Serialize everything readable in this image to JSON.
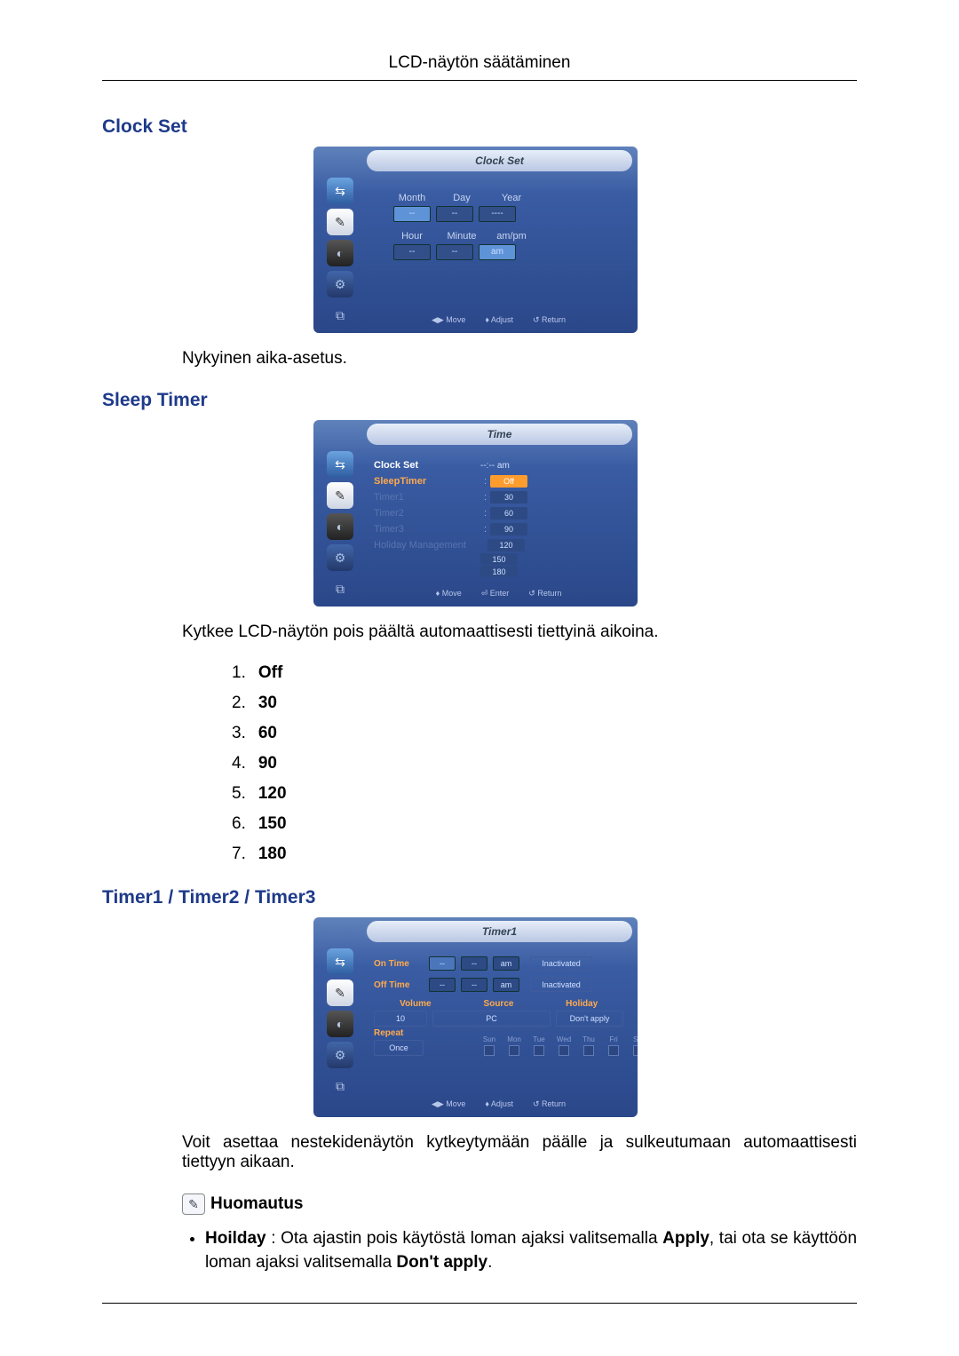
{
  "page": {
    "header": "LCD-näytön säätäminen"
  },
  "clockSet": {
    "title": "Clock Set",
    "osdTitle": "Clock Set",
    "row1_labels": [
      "Month",
      "Day",
      "Year"
    ],
    "row1_vals": [
      "--",
      "--",
      "----"
    ],
    "row2_labels": [
      "Hour",
      "Minute",
      "am/pm"
    ],
    "row2_vals": [
      "--",
      "--",
      "am"
    ],
    "footer": [
      "◀▶ Move",
      "♦ Adjust",
      "↺ Return"
    ],
    "desc": "Nykyinen aika-asetus."
  },
  "sleepTimer": {
    "title": "Sleep Timer",
    "osdTitle": "Time",
    "items": [
      {
        "label": "Clock Set",
        "value": "--:-- am",
        "cls": "active"
      },
      {
        "label": "SleepTimer",
        "value": "Off",
        "cls": "hl"
      },
      {
        "label": "Timer1",
        "value": "30",
        "cls": ""
      },
      {
        "label": "Timer2",
        "value": "60",
        "cls": ""
      },
      {
        "label": "Timer3",
        "value": "90",
        "cls": ""
      },
      {
        "label": "Holiday Management",
        "value": "120",
        "cls": ""
      }
    ],
    "extra": [
      "150",
      "180"
    ],
    "footer": [
      "♦ Move",
      "⏎ Enter",
      "↺ Return"
    ],
    "desc": "Kytkee LCD-näytön pois päältä automaattisesti tiettyinä aikoina.",
    "options": [
      "Off",
      "30",
      "60",
      "90",
      "120",
      "150",
      "180"
    ]
  },
  "timer123": {
    "title": "Timer1 / Timer2 / Timer3",
    "osdTitle": "Timer1",
    "onTime": {
      "label": "On Time",
      "h": "--",
      "m": "--",
      "ap": "am",
      "status": "Inactivated"
    },
    "offTime": {
      "label": "Off Time",
      "h": "--",
      "m": "--",
      "ap": "am",
      "status": "Inactivated"
    },
    "headers3": [
      "Volume",
      "Source",
      "Holiday"
    ],
    "vals3": [
      "10",
      "PC",
      "Don't apply"
    ],
    "repeat": {
      "label": "Repeat",
      "value": "Once"
    },
    "days": [
      "Sun",
      "Mon",
      "Tue",
      "Wed",
      "Thu",
      "Fri",
      "Sat"
    ],
    "footer": [
      "◀▶ Move",
      "♦ Adjust",
      "↺ Return"
    ],
    "desc": "Voit asettaa nestekidenäytön kytkeytymään päälle ja sulkeutumaan automaattisesti tiettyyn aikaan.",
    "noteLabel": "Huomautus",
    "bullet_prefix": "Hoilday",
    "bullet_mid1": " : Ota ajastin pois käytöstä loman ajaksi valitsemalla ",
    "bullet_b2": "Apply",
    "bullet_mid2": ", tai ota se käyttöön loman ajaksi valitsemalla ",
    "bullet_b3": "Don't apply",
    "bullet_end": "."
  },
  "colors": {
    "heading": "#1e3a8a",
    "osd_bg_top": "#5f82bb",
    "osd_bg_bottom": "#2a4789",
    "highlight": "#ffaa4c"
  }
}
